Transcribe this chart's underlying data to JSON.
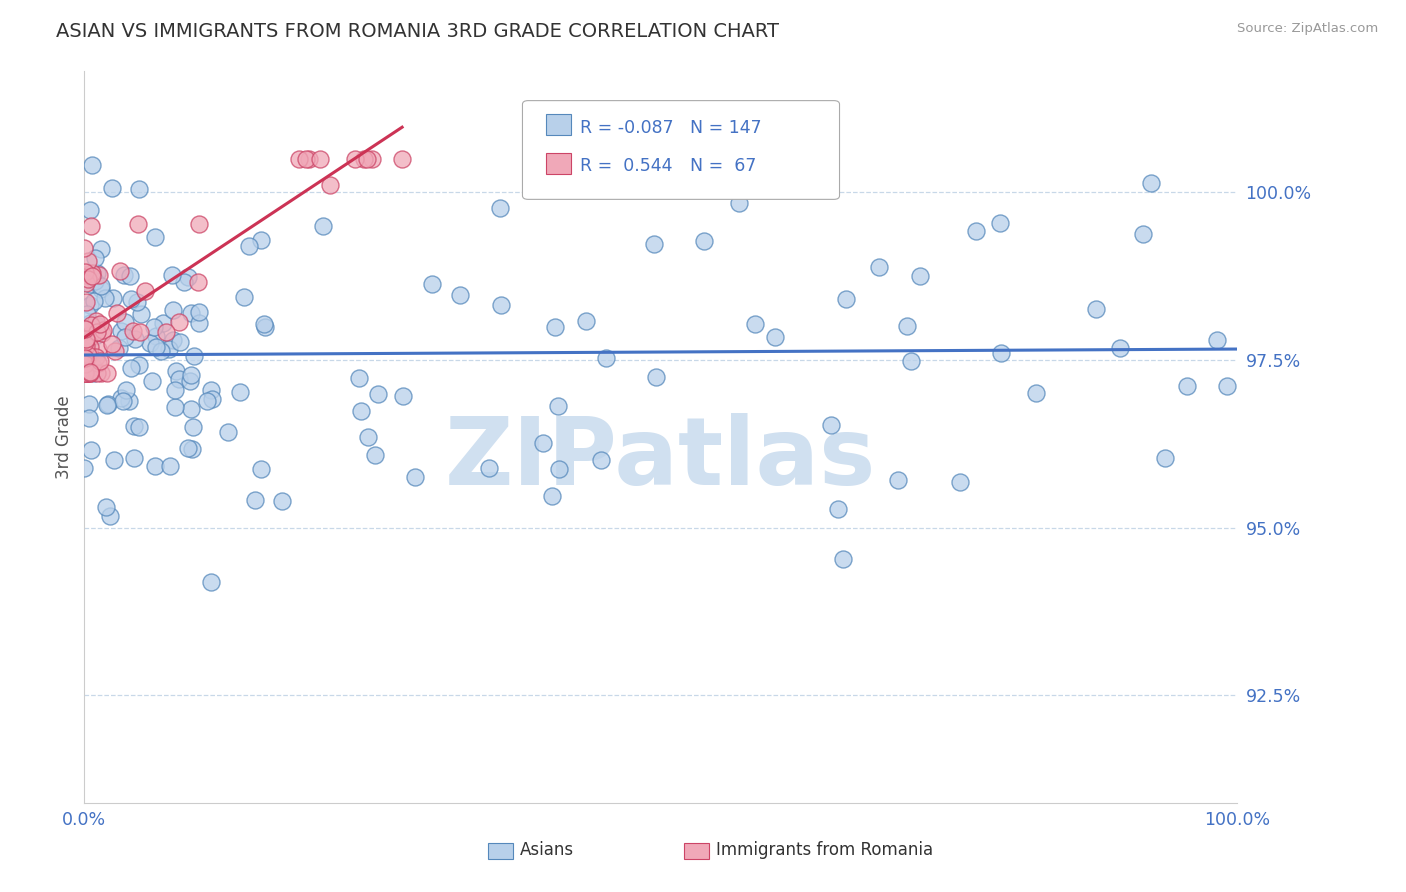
{
  "title": "ASIAN VS IMMIGRANTS FROM ROMANIA 3RD GRADE CORRELATION CHART",
  "source": "Source: ZipAtlas.com",
  "ylabel": "3rd Grade",
  "yticks": [
    0.925,
    0.95,
    0.975,
    1.0
  ],
  "ytick_labels": [
    "92.5%",
    "95.0%",
    "97.5%",
    "100.0%"
  ],
  "xmin": 0.0,
  "xmax": 1.0,
  "ymin": 0.909,
  "ymax": 1.018,
  "legend_label1": "Asians",
  "legend_label2": "Immigrants from Romania",
  "R1": -0.087,
  "N1": 147,
  "R2": 0.544,
  "N2": 67,
  "color_blue_fill": "#b8d0ea",
  "color_blue_edge": "#5588bb",
  "color_pink_fill": "#f0a8b8",
  "color_pink_edge": "#cc4466",
  "color_blue_line": "#4472c4",
  "color_pink_line": "#cc3355",
  "color_axis_text": "#4472c4",
  "color_ylabel": "#555555",
  "color_title": "#333333",
  "color_source": "#999999",
  "color_grid": "#c8d8e8",
  "color_watermark": "#d0e0f0",
  "watermark_text": "ZIPatlas",
  "legend_R1_text": "R = -0.087",
  "legend_N1_text": "N = 147",
  "legend_R2_text": "R =  0.544",
  "legend_N2_text": "N =  67"
}
